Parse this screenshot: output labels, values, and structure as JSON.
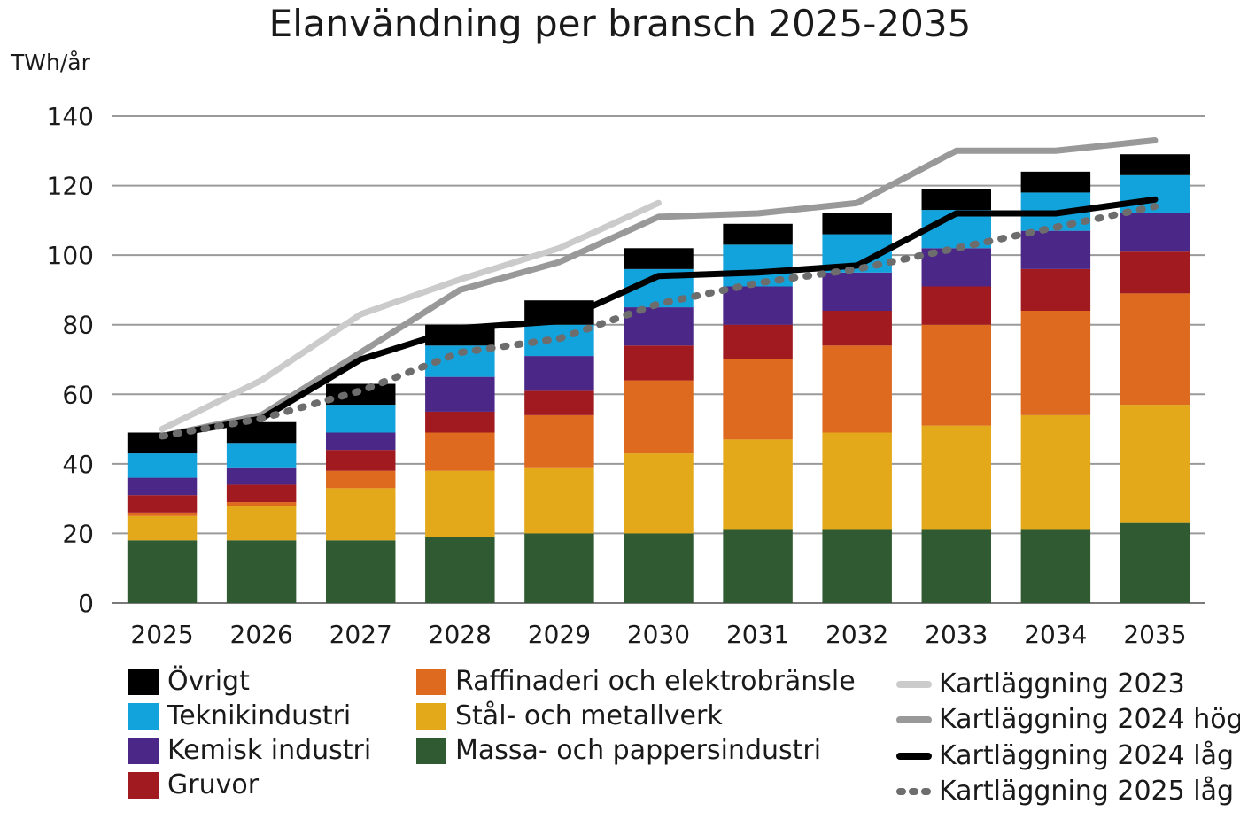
{
  "chart_data": {
    "type": "bar",
    "stacked": true,
    "title": "Elanvändning per bransch 2025-2035",
    "ylabel": "TWh/år",
    "ylim": [
      0,
      140
    ],
    "yticks": [
      0,
      20,
      40,
      60,
      80,
      100,
      120,
      140
    ],
    "grid": true,
    "categories": [
      "2025",
      "2026",
      "2027",
      "2028",
      "2029",
      "2030",
      "2031",
      "2032",
      "2033",
      "2034",
      "2035"
    ],
    "series": [
      {
        "name": "Massa- och pappersindustri",
        "color": "#2f5a32",
        "values": [
          18,
          18,
          18,
          19,
          20,
          20,
          21,
          21,
          21,
          21,
          23
        ]
      },
      {
        "name": "Stål- och metallverk",
        "color": "#e3a91a",
        "values": [
          7,
          10,
          15,
          19,
          19,
          23,
          26,
          28,
          30,
          33,
          34
        ]
      },
      {
        "name": "Raffinaderi och elektrobränsle",
        "color": "#dd6a1f",
        "values": [
          1,
          1,
          5,
          11,
          15,
          21,
          23,
          25,
          29,
          30,
          32
        ]
      },
      {
        "name": "Gruvor",
        "color": "#a01a1f",
        "values": [
          5,
          5,
          6,
          6,
          7,
          10,
          10,
          10,
          11,
          12,
          12
        ]
      },
      {
        "name": "Kemisk industri",
        "color": "#4b2787",
        "values": [
          5,
          5,
          5,
          10,
          10,
          11,
          11,
          11,
          11,
          11,
          11
        ]
      },
      {
        "name": "Teknikindustri",
        "color": "#12a2dc",
        "values": [
          7,
          7,
          8,
          9,
          9,
          11,
          12,
          11,
          11,
          11,
          11
        ]
      },
      {
        "name": "Övrigt",
        "color": "#000000",
        "values": [
          6,
          6,
          6,
          6,
          7,
          6,
          6,
          6,
          6,
          6,
          6
        ]
      }
    ],
    "lines": [
      {
        "name": "Kartläggning 2023",
        "color": "#cbcbcb",
        "style": "solid",
        "values": [
          50,
          64,
          83,
          93,
          102,
          115,
          null,
          null,
          null,
          null,
          null
        ]
      },
      {
        "name": "Kartläggning 2024 hög",
        "color": "#999999",
        "style": "solid",
        "values": [
          48,
          54,
          72,
          90,
          98,
          111,
          112,
          115,
          130,
          130,
          133
        ]
      },
      {
        "name": "Kartläggning 2024 låg",
        "color": "#000000",
        "style": "solid",
        "values": [
          48,
          53,
          70,
          79,
          81,
          94,
          95,
          97,
          112,
          112,
          116
        ]
      },
      {
        "name": "Kartläggning 2025 låg",
        "color": "#6d6d6d",
        "style": "dotted",
        "values": [
          48,
          53,
          61,
          72,
          76,
          86,
          92,
          96,
          102,
          108,
          114
        ]
      }
    ]
  }
}
